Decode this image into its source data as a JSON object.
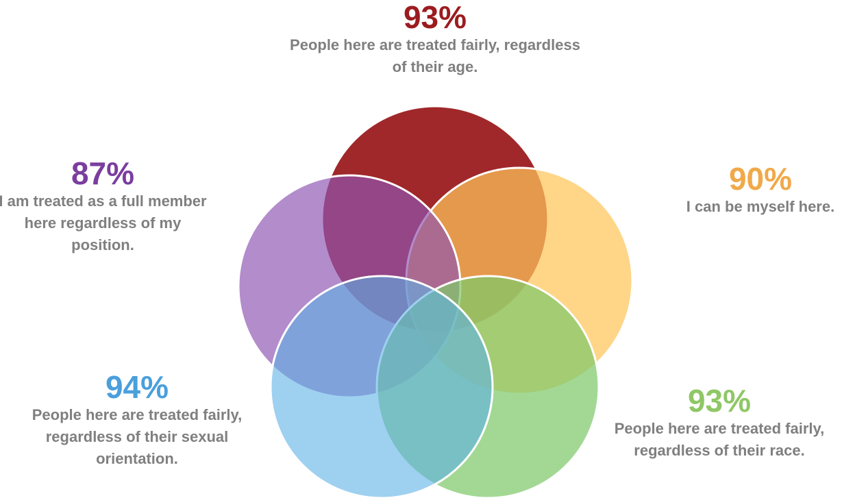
{
  "segments": [
    {
      "key": "age",
      "percent": "93%",
      "value": 93,
      "text": "People here are treated fairly, regardless of their age.",
      "color": "#9b1c1f"
    },
    {
      "key": "self",
      "percent": "90%",
      "value": 90,
      "text": "I can be myself here.",
      "color": "#f0a94a"
    },
    {
      "key": "race",
      "percent": "93%",
      "value": 93,
      "text": "People here are treated fairly, regardless of their race.",
      "color": "#8fc766"
    },
    {
      "key": "sexual_orientation",
      "percent": "94%",
      "value": 94,
      "text": "People here are treated fairly, regardless of their sexual orientation.",
      "color": "#4a9fdc"
    },
    {
      "key": "position",
      "percent": "87%",
      "value": 87,
      "text": "I am treated as a full member here regardless of my position.",
      "color": "#7a3e9e"
    }
  ]
}
